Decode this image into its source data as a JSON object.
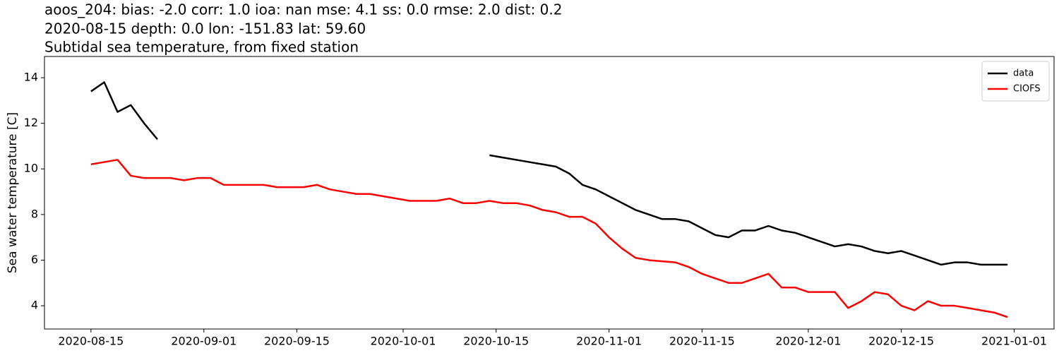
{
  "chart_data": {
    "type": "line",
    "title": [
      "aoos_204: bias: -2.0  corr: 1.0  ioa: nan  mse: 4.1  ss: 0.0  rmse: 2.0  dist: 0.2",
      "2020-08-15 depth: 0.0 lon: -151.83 lat: 59.60",
      "Subtidal sea temperature, from fixed station"
    ],
    "ylabel": "Sea water temperature [C]",
    "x": [
      "2020-08-15",
      "2020-08-17",
      "2020-08-19",
      "2020-08-21",
      "2020-08-23",
      "2020-08-25",
      "2020-08-27",
      "2020-08-29",
      "2020-08-31",
      "2020-09-02",
      "2020-09-04",
      "2020-09-06",
      "2020-09-08",
      "2020-09-10",
      "2020-09-12",
      "2020-09-14",
      "2020-09-16",
      "2020-09-18",
      "2020-09-20",
      "2020-09-22",
      "2020-09-24",
      "2020-09-26",
      "2020-09-28",
      "2020-09-30",
      "2020-10-02",
      "2020-10-04",
      "2020-10-06",
      "2020-10-08",
      "2020-10-10",
      "2020-10-12",
      "2020-10-14",
      "2020-10-16",
      "2020-10-18",
      "2020-10-20",
      "2020-10-22",
      "2020-10-24",
      "2020-10-26",
      "2020-10-28",
      "2020-10-30",
      "2020-11-01",
      "2020-11-03",
      "2020-11-05",
      "2020-11-07",
      "2020-11-09",
      "2020-11-11",
      "2020-11-13",
      "2020-11-15",
      "2020-11-17",
      "2020-11-19",
      "2020-11-21",
      "2020-11-23",
      "2020-11-25",
      "2020-11-27",
      "2020-11-29",
      "2020-12-01",
      "2020-12-03",
      "2020-12-05",
      "2020-12-07",
      "2020-12-09",
      "2020-12-11",
      "2020-12-13",
      "2020-12-15",
      "2020-12-17",
      "2020-12-19",
      "2020-12-21",
      "2020-12-23",
      "2020-12-25",
      "2020-12-27",
      "2020-12-29",
      "2020-12-31"
    ],
    "series": [
      {
        "name": "data",
        "color": "#000000",
        "values": [
          13.4,
          13.8,
          12.5,
          12.8,
          12.0,
          11.3,
          null,
          null,
          null,
          null,
          null,
          null,
          null,
          null,
          null,
          null,
          null,
          null,
          null,
          null,
          null,
          null,
          null,
          null,
          null,
          null,
          null,
          null,
          null,
          null,
          10.6,
          10.5,
          10.4,
          10.3,
          10.2,
          10.1,
          9.8,
          9.3,
          9.1,
          8.8,
          8.5,
          8.2,
          8.0,
          7.8,
          7.8,
          7.7,
          7.4,
          7.1,
          7.0,
          7.3,
          7.3,
          7.5,
          7.3,
          7.2,
          7.0,
          6.8,
          6.6,
          6.7,
          6.6,
          6.4,
          6.3,
          6.4,
          6.2,
          6.0,
          5.8,
          5.9,
          5.9,
          5.8,
          5.8,
          5.8
        ]
      },
      {
        "name": "CIOFS",
        "color": "#ff0000",
        "values": [
          10.2,
          10.3,
          10.4,
          9.7,
          9.6,
          9.6,
          9.6,
          9.5,
          9.6,
          9.6,
          9.3,
          9.3,
          9.3,
          9.3,
          9.2,
          9.2,
          9.2,
          9.3,
          9.1,
          9.0,
          8.9,
          8.9,
          8.8,
          8.7,
          8.6,
          8.6,
          8.6,
          8.7,
          8.5,
          8.5,
          8.6,
          8.5,
          8.5,
          8.4,
          8.2,
          8.1,
          7.9,
          7.9,
          7.6,
          7.0,
          6.5,
          6.1,
          6.0,
          5.95,
          5.9,
          5.7,
          5.4,
          5.2,
          5.0,
          5.0,
          5.2,
          5.4,
          4.8,
          4.8,
          4.6,
          4.6,
          4.6,
          3.9,
          4.2,
          4.6,
          4.5,
          4.0,
          3.8,
          4.2,
          4.0,
          4.0,
          3.9,
          3.8,
          3.7,
          3.5
        ]
      }
    ],
    "xlim": [
      "2020-08-08",
      "2021-01-07"
    ],
    "xticks": [
      "2020-08-15",
      "2020-09-01",
      "2020-09-15",
      "2020-10-01",
      "2020-10-15",
      "2020-11-01",
      "2020-11-15",
      "2020-12-01",
      "2020-12-15",
      "2021-01-01"
    ],
    "ylim": [
      2.98,
      14.93
    ],
    "yticks": [
      4,
      6,
      8,
      10,
      12,
      14
    ],
    "legend": "upper right"
  }
}
